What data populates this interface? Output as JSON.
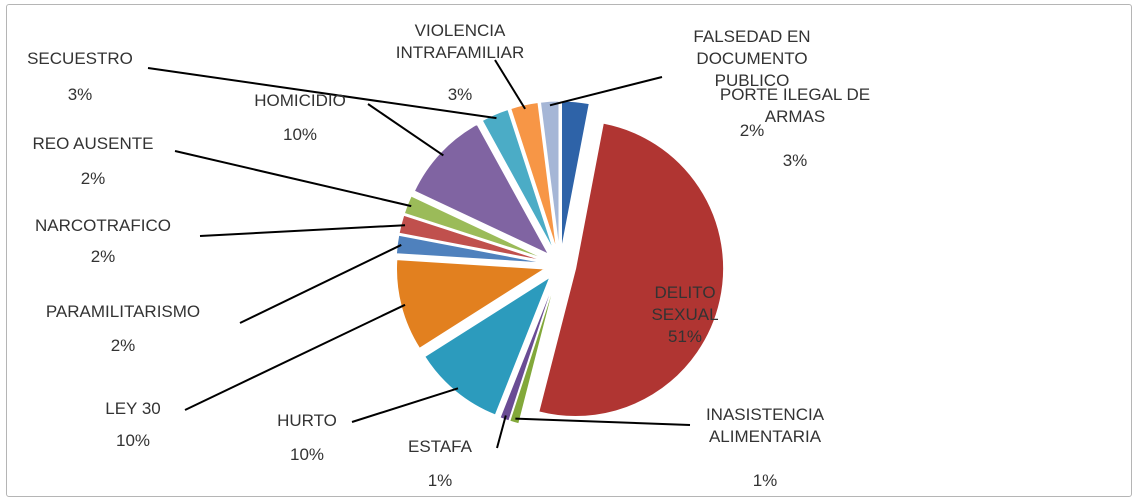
{
  "chart_data": {
    "type": "pie",
    "categories": [
      "PORTE ILEGAL DE ARMAS",
      "DELITO SEXUAL",
      "INASISTENCIA ALIMENTARIA",
      "ESTAFA",
      "HURTO",
      "LEY 30",
      "PARAMILITARISMO",
      "NARCOTRAFICO",
      "REO AUSENTE",
      "HOMICIDIO",
      "SECUESTRO",
      "VIOLENCIA INTRAFAMILIAR",
      "FALSEDAD EN DOCUMENTO PUBLICO"
    ],
    "values": [
      3,
      51,
      1,
      1,
      10,
      10,
      2,
      2,
      2,
      10,
      3,
      3,
      2
    ],
    "value_labels": [
      "3%",
      "51%",
      "1%",
      "1%",
      "10%",
      "10%",
      "2%",
      "2%",
      "2%",
      "10%",
      "3%",
      "3%",
      "2%"
    ],
    "colors": [
      "#2e63a8",
      "#b03532",
      "#82a83a",
      "#6a4c94",
      "#2c9bbd",
      "#e2801f",
      "#4f81bd",
      "#c0504d",
      "#9bbb59",
      "#8064a2",
      "#4bacc6",
      "#f79646",
      "#a5b6d6"
    ]
  }
}
